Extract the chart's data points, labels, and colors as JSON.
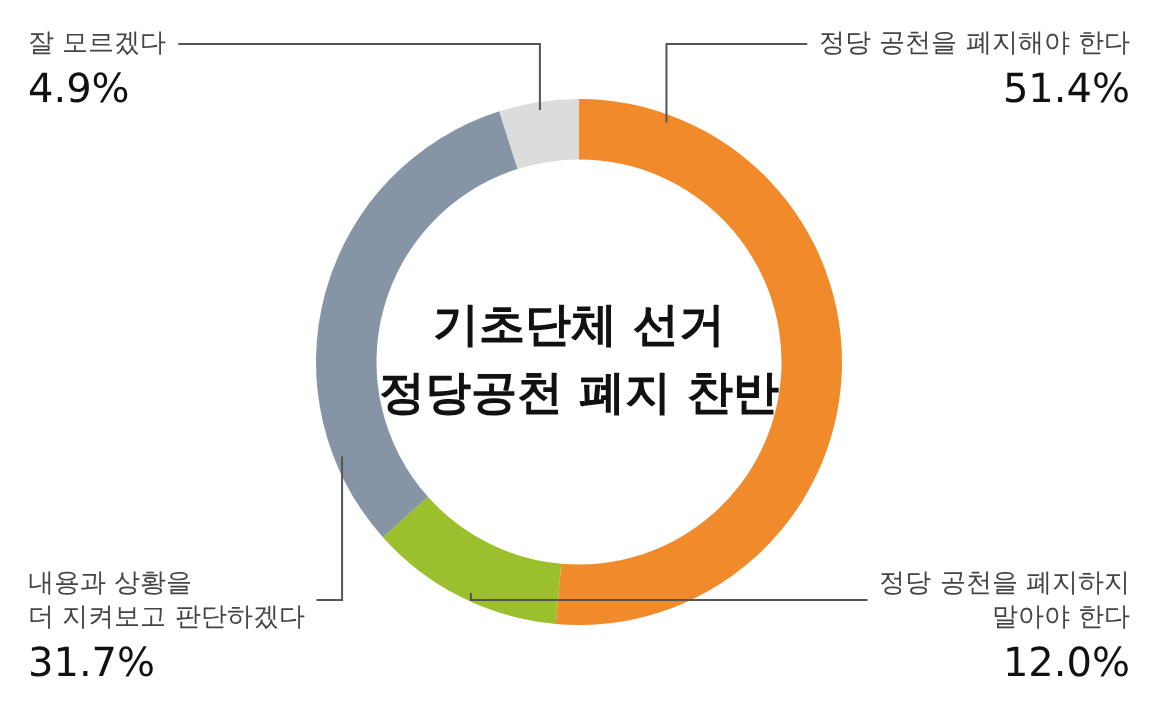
{
  "chart_data": {
    "type": "donut",
    "title": "기초단체 선거\n정당공천 폐지 찬반",
    "categories": [
      "정당 공천을 폐지해야 한다",
      "정당 공천을 폐지하지\n말아야 한다",
      "내용과 상황을\n더 지켜보고 판단하겠다",
      "잘 모르겠다"
    ],
    "values": [
      51.4,
      12.0,
      31.7,
      4.9
    ],
    "value_labels": [
      "51.4%",
      "12.0%",
      "31.7%",
      "4.9%"
    ],
    "colors": [
      "#f08a2a",
      "#9cbf2e",
      "#8595a5",
      "#dcdcdc"
    ],
    "legend": false
  }
}
